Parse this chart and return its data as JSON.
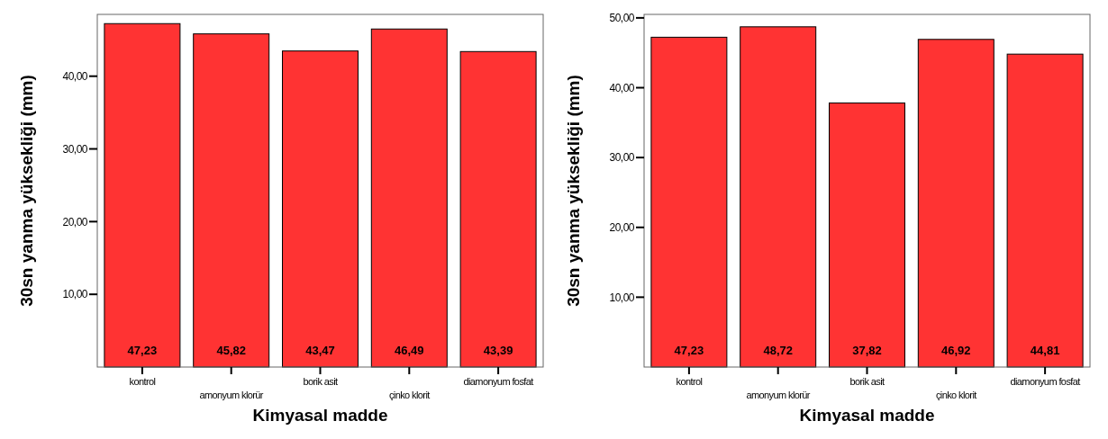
{
  "chart_data": [
    {
      "type": "bar",
      "xlabel": "Kimyasal madde",
      "ylabel": "30sn yanma yüksekliği (mm)",
      "categories": [
        "kontrol",
        "amonyum klorür",
        "borik asit",
        "çinko klorit",
        "diamonyum fosfat"
      ],
      "values": [
        47.23,
        45.82,
        43.47,
        46.49,
        43.39
      ],
      "color": "#ff3333",
      "value_labels": [
        "47,23",
        "45,82",
        "43,47",
        "46,49",
        "43,39"
      ],
      "ylim": [
        0,
        48.5
      ],
      "yticks": [
        {
          "value": 10,
          "label": "10,00"
        },
        {
          "value": 20,
          "label": "20,00"
        },
        {
          "value": 30,
          "label": "30,00"
        },
        {
          "value": 40,
          "label": "40,00"
        }
      ],
      "grid": false
    },
    {
      "type": "bar",
      "xlabel": "Kimyasal madde",
      "ylabel": "30sn yanma yüksekliği (mm)",
      "categories": [
        "kontrol",
        "amonyum klorür",
        "borik asit",
        "çinko klorit",
        "diamonyum fosfat"
      ],
      "values": [
        47.23,
        48.72,
        37.82,
        46.92,
        44.81
      ],
      "color": "#ff3333",
      "value_labels": [
        "47,23",
        "48,72",
        "37,82",
        "46,92",
        "44,81"
      ],
      "ylim": [
        0,
        50.5
      ],
      "yticks": [
        {
          "value": 10,
          "label": "10,00"
        },
        {
          "value": 20,
          "label": "20,00"
        },
        {
          "value": 30,
          "label": "30,00"
        },
        {
          "value": 40,
          "label": "40,00"
        },
        {
          "value": 50,
          "label": "50,00"
        }
      ],
      "grid": false
    }
  ]
}
